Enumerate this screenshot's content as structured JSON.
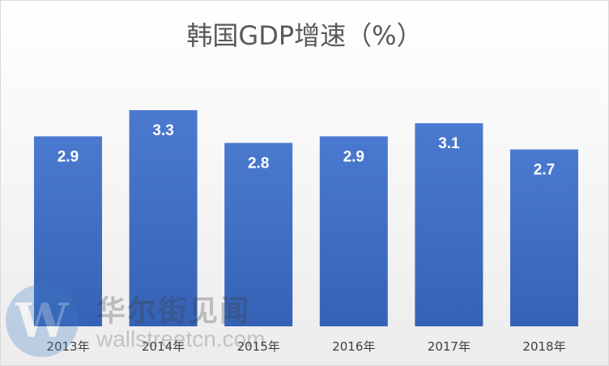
{
  "chart_data": {
    "type": "bar",
    "title": "韩国GDP增速（%）",
    "categories": [
      "2013年",
      "2014年",
      "2015年",
      "2016年",
      "2017年",
      "2018年"
    ],
    "values": [
      2.9,
      3.3,
      2.8,
      2.9,
      3.1,
      2.7
    ],
    "ylim": [
      0,
      3.4
    ],
    "grid": false,
    "legend": "none",
    "data_labels": true,
    "bar_color": "#4472c4"
  },
  "watermark": {
    "logo_letter": "W",
    "brand": "华尔街见闻",
    "url": "wallstreetcn.com"
  }
}
